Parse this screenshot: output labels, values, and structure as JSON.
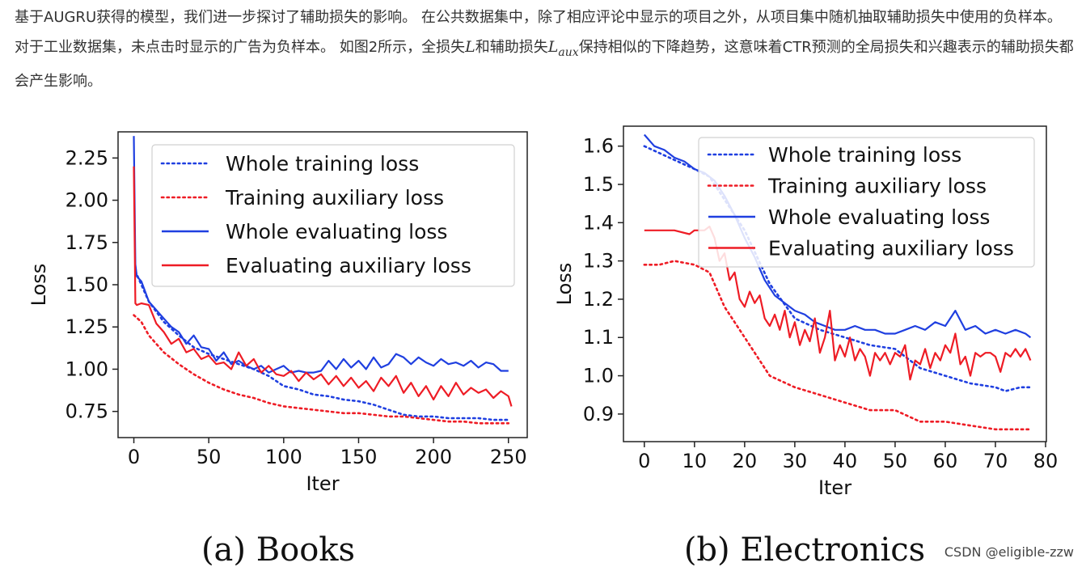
{
  "paragraph": {
    "part1": "基于AUGRU获得的模型，我们进一步探讨了辅助损失的影响。 在公共数据集中，除了相应评论中显示的项目之外，从项目集中随机抽取辅助损失中使用的负样本。 对于工业数据集，未点击时显示的广告为负样本。 如图2所示，全损失",
    "math1": "L",
    "part2": "和辅助损失",
    "math2_base": "L",
    "math2_sub": "aux",
    "part3": "保持相似的下降趋势，这意味着CTR预测的全局损失和兴趣表示的辅助损失都会产生影响。"
  },
  "watermark": "CSDN @eligible-zzw",
  "colors": {
    "blue": "#1f3fe0",
    "red": "#ee1c25"
  },
  "chart_data": [
    {
      "type": "line",
      "caption": "(a) Books",
      "xlabel": "Iter",
      "ylabel": "Loss",
      "xlim": [
        -10,
        262
      ],
      "ylim": [
        0.6,
        2.4
      ],
      "xticks": [
        0,
        50,
        100,
        150,
        200,
        250
      ],
      "yticks": [
        0.75,
        1.0,
        1.25,
        1.5,
        1.75,
        2.0,
        2.25
      ],
      "ytick_labels": [
        "0.75",
        "1.00",
        "1.25",
        "1.50",
        "1.75",
        "2.00",
        "2.25"
      ],
      "legend_position": "top-right",
      "grid": false,
      "series": [
        {
          "name": "Whole training loss",
          "color": "#1f3fe0",
          "style": "dotted",
          "x": [
            1,
            5,
            10,
            20,
            30,
            40,
            50,
            60,
            70,
            80,
            90,
            100,
            110,
            120,
            130,
            140,
            150,
            160,
            170,
            180,
            190,
            200,
            210,
            220,
            230,
            240,
            250
          ],
          "y": [
            1.58,
            1.5,
            1.4,
            1.28,
            1.2,
            1.13,
            1.09,
            1.06,
            1.03,
            1.0,
            0.96,
            0.9,
            0.88,
            0.85,
            0.84,
            0.82,
            0.81,
            0.79,
            0.76,
            0.73,
            0.72,
            0.72,
            0.71,
            0.71,
            0.71,
            0.7,
            0.7
          ]
        },
        {
          "name": "Training auxiliary loss",
          "color": "#ee1c25",
          "style": "dotted",
          "x": [
            0,
            5,
            10,
            20,
            30,
            40,
            50,
            60,
            70,
            80,
            90,
            100,
            110,
            120,
            130,
            140,
            150,
            160,
            170,
            180,
            190,
            200,
            210,
            220,
            230,
            240,
            250
          ],
          "y": [
            1.32,
            1.28,
            1.2,
            1.1,
            1.03,
            0.97,
            0.92,
            0.88,
            0.85,
            0.83,
            0.8,
            0.78,
            0.77,
            0.76,
            0.75,
            0.74,
            0.74,
            0.73,
            0.72,
            0.72,
            0.71,
            0.7,
            0.69,
            0.69,
            0.68,
            0.68,
            0.68
          ]
        },
        {
          "name": "Whole evaluating loss",
          "color": "#1f3fe0",
          "style": "solid",
          "x": [
            0,
            1,
            2,
            5,
            10,
            15,
            20,
            25,
            30,
            35,
            40,
            45,
            50,
            55,
            60,
            65,
            70,
            75,
            80,
            85,
            90,
            95,
            100,
            105,
            110,
            115,
            120,
            125,
            130,
            135,
            140,
            145,
            150,
            155,
            160,
            165,
            170,
            175,
            180,
            185,
            190,
            195,
            200,
            205,
            210,
            215,
            220,
            225,
            230,
            235,
            240,
            245,
            250
          ],
          "y": [
            2.38,
            1.62,
            1.55,
            1.52,
            1.4,
            1.35,
            1.3,
            1.25,
            1.22,
            1.15,
            1.2,
            1.13,
            1.12,
            1.05,
            1.1,
            1.03,
            1.05,
            1.02,
            1.0,
            1.02,
            0.98,
            1.0,
            1.02,
            0.98,
            0.99,
            0.98,
            0.98,
            0.99,
            1.05,
            1.0,
            1.06,
            1.01,
            1.05,
            1.0,
            1.07,
            1.01,
            1.03,
            1.09,
            1.07,
            1.03,
            1.07,
            1.04,
            1.02,
            1.06,
            1.03,
            1.04,
            1.02,
            1.05,
            1.01,
            1.04,
            1.03,
            0.99,
            0.99
          ]
        },
        {
          "name": "Evaluating auxiliary loss",
          "color": "#ee1c25",
          "style": "solid",
          "x": [
            0,
            1,
            2,
            5,
            10,
            15,
            20,
            25,
            30,
            35,
            40,
            45,
            50,
            55,
            60,
            65,
            70,
            75,
            80,
            85,
            90,
            95,
            100,
            105,
            110,
            115,
            120,
            125,
            130,
            135,
            140,
            145,
            150,
            155,
            160,
            165,
            170,
            175,
            180,
            185,
            190,
            195,
            200,
            205,
            210,
            215,
            220,
            225,
            230,
            235,
            240,
            245,
            250,
            252
          ],
          "y": [
            2.2,
            1.39,
            1.38,
            1.39,
            1.38,
            1.27,
            1.22,
            1.15,
            1.18,
            1.1,
            1.12,
            1.06,
            1.08,
            1.03,
            1.04,
            1.0,
            1.1,
            1.02,
            1.06,
            0.98,
            1.02,
            0.97,
            0.96,
            0.99,
            0.93,
            0.98,
            0.94,
            0.97,
            0.91,
            0.96,
            0.9,
            0.95,
            0.89,
            0.93,
            0.87,
            0.95,
            0.9,
            0.96,
            0.86,
            0.92,
            0.84,
            0.9,
            0.82,
            0.9,
            0.84,
            0.92,
            0.85,
            0.89,
            0.86,
            0.88,
            0.83,
            0.87,
            0.84,
            0.78
          ]
        }
      ]
    },
    {
      "type": "line",
      "caption": "(b) Electronics",
      "xlabel": "Iter",
      "ylabel": "Loss",
      "xlim": [
        -4,
        80
      ],
      "ylim": [
        0.83,
        1.65
      ],
      "xticks": [
        0,
        10,
        20,
        30,
        40,
        50,
        60,
        70,
        80
      ],
      "yticks": [
        0.9,
        1.0,
        1.1,
        1.2,
        1.3,
        1.4,
        1.5,
        1.6
      ],
      "ytick_labels": [
        "0.9",
        "1.0",
        "1.1",
        "1.2",
        "1.3",
        "1.4",
        "1.5",
        "1.6"
      ],
      "legend_position": "top-right",
      "grid": false,
      "series": [
        {
          "name": "Whole training loss",
          "color": "#1f3fe0",
          "style": "dotted",
          "x": [
            0,
            5,
            10,
            13,
            16,
            20,
            25,
            30,
            35,
            40,
            45,
            50,
            55,
            60,
            65,
            70,
            72,
            75,
            77
          ],
          "y": [
            1.6,
            1.57,
            1.54,
            1.52,
            1.46,
            1.38,
            1.24,
            1.15,
            1.12,
            1.1,
            1.08,
            1.07,
            1.02,
            1.0,
            0.98,
            0.97,
            0.96,
            0.97,
            0.97
          ]
        },
        {
          "name": "Training auxiliary loss",
          "color": "#ee1c25",
          "style": "dotted",
          "x": [
            0,
            3,
            6,
            10,
            13,
            16,
            20,
            25,
            30,
            35,
            40,
            45,
            50,
            55,
            60,
            65,
            70,
            75,
            77
          ],
          "y": [
            1.29,
            1.29,
            1.3,
            1.29,
            1.27,
            1.18,
            1.1,
            1.0,
            0.97,
            0.95,
            0.93,
            0.91,
            0.91,
            0.88,
            0.88,
            0.87,
            0.86,
            0.86,
            0.86
          ]
        },
        {
          "name": "Whole evaluating loss",
          "color": "#1f3fe0",
          "style": "solid",
          "x": [
            0,
            2,
            4,
            6,
            8,
            10,
            12,
            14,
            16,
            18,
            20,
            22,
            24,
            26,
            28,
            30,
            32,
            34,
            36,
            38,
            40,
            42,
            44,
            46,
            48,
            50,
            52,
            54,
            56,
            58,
            60,
            62,
            64,
            66,
            68,
            70,
            72,
            74,
            76,
            77
          ],
          "y": [
            1.63,
            1.6,
            1.59,
            1.57,
            1.56,
            1.54,
            1.53,
            1.51,
            1.47,
            1.42,
            1.36,
            1.31,
            1.25,
            1.21,
            1.19,
            1.17,
            1.16,
            1.14,
            1.13,
            1.12,
            1.12,
            1.13,
            1.12,
            1.12,
            1.11,
            1.11,
            1.12,
            1.13,
            1.12,
            1.14,
            1.13,
            1.17,
            1.12,
            1.13,
            1.11,
            1.12,
            1.11,
            1.12,
            1.11,
            1.1
          ]
        },
        {
          "name": "Evaluating auxiliary loss",
          "color": "#ee1c25",
          "style": "solid",
          "x": [
            0,
            3,
            6,
            9,
            10,
            12,
            13,
            14,
            15,
            16,
            17,
            18,
            19,
            20,
            21,
            22,
            23,
            24,
            25,
            26,
            27,
            28,
            29,
            30,
            31,
            32,
            33,
            34,
            35,
            36,
            37,
            38,
            39,
            40,
            41,
            42,
            43,
            44,
            45,
            46,
            47,
            48,
            49,
            50,
            51,
            52,
            53,
            54,
            55,
            56,
            57,
            58,
            59,
            60,
            61,
            62,
            63,
            64,
            65,
            66,
            67,
            68,
            69,
            70,
            71,
            72,
            73,
            74,
            75,
            76,
            77
          ],
          "y": [
            1.38,
            1.38,
            1.38,
            1.37,
            1.38,
            1.38,
            1.39,
            1.36,
            1.3,
            1.32,
            1.25,
            1.27,
            1.2,
            1.18,
            1.22,
            1.19,
            1.21,
            1.15,
            1.13,
            1.16,
            1.12,
            1.17,
            1.1,
            1.14,
            1.08,
            1.12,
            1.09,
            1.15,
            1.06,
            1.1,
            1.17,
            1.04,
            1.08,
            1.05,
            1.1,
            1.04,
            1.07,
            1.05,
            1.0,
            1.06,
            1.04,
            1.06,
            1.03,
            1.06,
            1.05,
            1.08,
            0.99,
            1.04,
            1.03,
            1.07,
            1.02,
            1.06,
            1.04,
            1.08,
            1.06,
            1.11,
            1.03,
            1.05,
            1.0,
            1.06,
            1.05,
            1.06,
            1.06,
            1.05,
            1.01,
            1.06,
            1.05,
            1.07,
            1.05,
            1.07,
            1.04
          ]
        }
      ]
    }
  ]
}
